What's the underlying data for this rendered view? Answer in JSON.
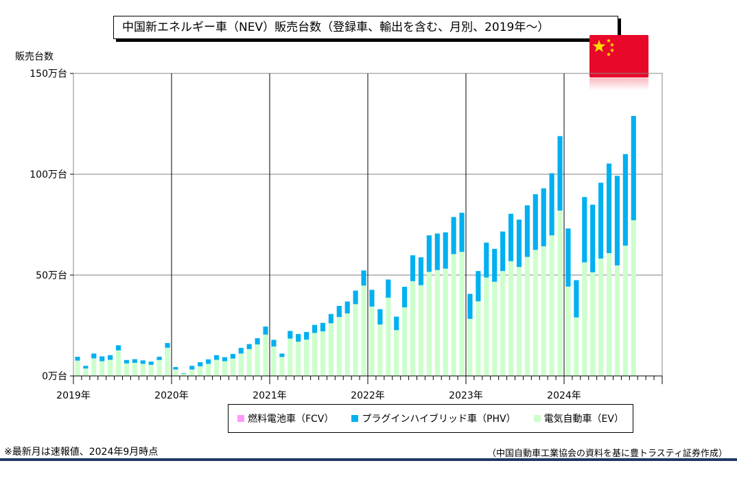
{
  "title": "中国新エネルギー車（NEV）販売台数（登録車、輸出を含む、月別、2019年～）",
  "flag_icon": "china-flag-icon",
  "chart_data": {
    "type": "bar",
    "stacked": true,
    "ylabel": "販売台数",
    "ylim": [
      0,
      150
    ],
    "yticks": [
      0,
      50,
      100,
      150
    ],
    "ytick_labels": [
      "0万台",
      "50万台",
      "100万台",
      "150万台"
    ],
    "year_labels": [
      "2019年",
      "2020年",
      "2021年",
      "2022年",
      "2023年",
      "2024年"
    ],
    "grid": true,
    "legend_position": "bottom",
    "months": 69,
    "series": [
      {
        "name": "燃料電池車（FCV）",
        "color": "#ff99ff",
        "values": [
          0,
          0,
          0,
          0,
          0,
          0,
          0,
          0,
          0,
          0,
          0,
          0,
          0,
          0,
          0,
          0,
          0,
          0,
          0,
          0,
          0,
          0,
          0,
          0,
          0,
          0,
          0,
          0,
          0,
          0,
          0,
          0,
          0,
          0,
          0,
          0,
          0,
          0,
          0,
          0,
          0,
          0,
          0,
          0,
          0,
          0,
          0,
          0,
          0,
          0,
          0,
          0,
          0,
          0,
          0,
          0,
          0,
          0,
          0,
          0,
          0,
          0,
          0,
          0,
          0,
          0,
          0,
          0,
          0
        ]
      },
      {
        "name": "プラグインハイブリッド車（PHV）",
        "color": "#00b0f0",
        "values": [
          1.9,
          1.3,
          2.4,
          2.4,
          2.3,
          2.5,
          1.7,
          1.8,
          1.7,
          1.6,
          1.6,
          2.3,
          1.2,
          0.3,
          1.8,
          2.0,
          2.2,
          2.3,
          2.0,
          2.3,
          2.8,
          2.5,
          3.1,
          4.0,
          3.3,
          1.7,
          3.8,
          3.8,
          3.8,
          4.0,
          4.2,
          4.6,
          5.5,
          5.9,
          6.7,
          7.5,
          8.3,
          7.6,
          9.0,
          6.7,
          10.2,
          12.8,
          13.8,
          18.1,
          18.1,
          18.0,
          18.4,
          19.4,
          12.4,
          15.0,
          17.3,
          16.3,
          19.6,
          23.5,
          23.5,
          25.6,
          27.6,
          28.7,
          30.8,
          36.9,
          28.8,
          18.5,
          32.4,
          33.5,
          37.6,
          44.4,
          44.4,
          45.4,
          51.7
        ]
      },
      {
        "name": "電気自動車（EV）",
        "color": "#ccffcc",
        "values": [
          7.6,
          3.7,
          8.7,
          7.3,
          8.0,
          12.7,
          6.2,
          6.5,
          6.0,
          5.5,
          7.9,
          14.0,
          3.2,
          1.1,
          3.2,
          4.8,
          6.0,
          8.0,
          7.3,
          8.6,
          11.1,
          13.3,
          15.6,
          20.5,
          14.6,
          9.4,
          18.5,
          17.0,
          18.0,
          21.3,
          22.1,
          26.1,
          29.2,
          31.0,
          35.6,
          44.8,
          34.4,
          25.5,
          38.8,
          22.7,
          34.0,
          47.0,
          45.0,
          51.6,
          52.5,
          53.2,
          60.4,
          61.5,
          28.3,
          37.0,
          48.8,
          46.7,
          52.0,
          56.9,
          54.0,
          59.0,
          62.5,
          64.3,
          69.7,
          82.0,
          44.3,
          29.0,
          56.3,
          51.4,
          58.2,
          60.9,
          54.8,
          64.6,
          77.2
        ]
      }
    ]
  },
  "legend": [
    {
      "label": "燃料電池車（FCV）",
      "color": "#ff99ff"
    },
    {
      "label": "プラグインハイブリッド車（PHV）",
      "color": "#00b0f0"
    },
    {
      "label": "電気自動車（EV）",
      "color": "#ccffcc"
    }
  ],
  "footnote": "※最新月は速報値、2024年9月時点",
  "source": "（中国自動車工業協会の資料を基に豊トラスティ証券作成）"
}
